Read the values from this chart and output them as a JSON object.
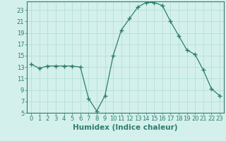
{
  "title": "",
  "xlabel": "Humidex (Indice chaleur)",
  "ylabel": "",
  "x_values": [
    0,
    1,
    2,
    3,
    4,
    5,
    6,
    7,
    8,
    9,
    10,
    11,
    12,
    13,
    14,
    15,
    16,
    17,
    18,
    19,
    20,
    21,
    22,
    23
  ],
  "y_values": [
    13.5,
    12.8,
    13.2,
    13.2,
    13.2,
    13.2,
    13.0,
    7.5,
    5.3,
    8.0,
    15.0,
    19.5,
    21.5,
    23.5,
    24.3,
    24.3,
    23.8,
    21.0,
    18.5,
    16.0,
    15.2,
    12.5,
    9.2,
    8.0
  ],
  "line_color": "#2e7d6e",
  "marker": "+",
  "marker_size": 4,
  "bg_color": "#d4f0ec",
  "grid_color": "#aedbd5",
  "ylim_min": 5,
  "ylim_max": 24,
  "yticks": [
    5,
    7,
    9,
    11,
    13,
    15,
    17,
    19,
    21,
    23
  ],
  "xticks": [
    0,
    1,
    2,
    3,
    4,
    5,
    6,
    7,
    8,
    9,
    10,
    11,
    12,
    13,
    14,
    15,
    16,
    17,
    18,
    19,
    20,
    21,
    22,
    23
  ],
  "tick_fontsize": 6,
  "label_fontsize": 7.5
}
